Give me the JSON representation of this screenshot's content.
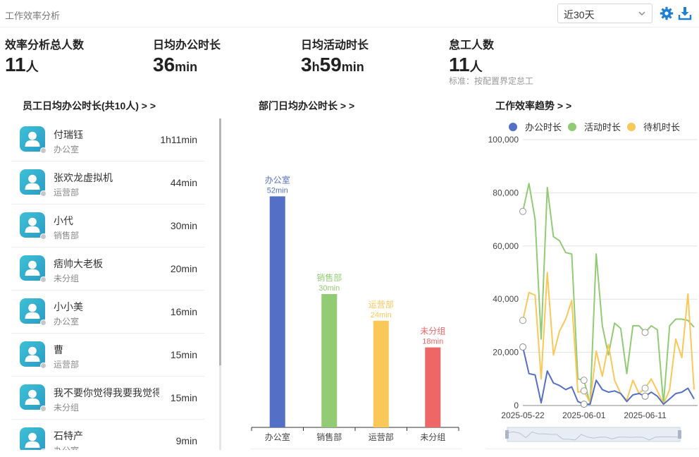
{
  "header": {
    "title": "工作效率分析",
    "range_selected": "近30天"
  },
  "stats": [
    {
      "label": "效率分析总人数",
      "value": "11",
      "unit": "人",
      "note": ""
    },
    {
      "label": "日均办公时长",
      "value": "36",
      "unit": "min",
      "note": ""
    },
    {
      "label": "日均活动时长",
      "value_h": "3",
      "unit_h": "h",
      "value": "59",
      "unit": "min",
      "note": ""
    },
    {
      "label": "怠工人数",
      "value": "11",
      "unit": "人",
      "note": "标准：按配置界定怠工"
    }
  ],
  "employees": {
    "title": "员工日均办公时长(共10人) > >",
    "items": [
      {
        "name": "付瑞钰",
        "dept": "办公室",
        "duration": "1h11min"
      },
      {
        "name": "张欢龙虚拟机",
        "dept": "运营部",
        "duration": "44min"
      },
      {
        "name": "小代",
        "dept": "销售部",
        "duration": "30min"
      },
      {
        "name": "痞帅大老板",
        "dept": "未分组",
        "duration": "20min"
      },
      {
        "name": "小小美",
        "dept": "办公室",
        "duration": "16min"
      },
      {
        "name": "曹",
        "dept": "运营部",
        "duration": "15min"
      },
      {
        "name": "我不要你觉得我要我觉得",
        "dept": "未分组",
        "duration": "15min"
      },
      {
        "name": "石特产",
        "dept": "办公室",
        "duration": "9min"
      }
    ]
  },
  "colors": {
    "accent": "#1f7fd0",
    "office": "#5470c6",
    "sales": "#91cc75",
    "ops": "#fac858",
    "ungrouped": "#ee6666"
  },
  "chart_data": [
    {
      "type": "bar",
      "title": "部门日均办公时长 > >",
      "categories": [
        "办公室",
        "销售部",
        "运营部",
        "未分组"
      ],
      "values": [
        52,
        30,
        24,
        18
      ],
      "data_labels": [
        "52min",
        "30min",
        "24min",
        "18min"
      ],
      "colors": [
        "#5470c6",
        "#91cc75",
        "#fac858",
        "#ee6666"
      ],
      "ylim": [
        0,
        60
      ]
    },
    {
      "type": "line",
      "title": "工作效率趋势 > >",
      "legend_position": "top",
      "x_ticks": [
        "2025-05-22",
        "2025-06-01",
        "2025-06-11"
      ],
      "y_ticks": [
        "0",
        "20,000",
        "40,000",
        "60,000",
        "80,000",
        "100,000"
      ],
      "ylim": [
        0,
        100000
      ],
      "grid": true,
      "series": [
        {
          "name": "办公时长",
          "color": "#5470c6",
          "values": [
            22000,
            12000,
            11500,
            1000,
            13000,
            8500,
            7500,
            6000,
            7000,
            1500,
            500,
            500,
            9500,
            6000,
            5000,
            5500,
            4500,
            1500,
            4000,
            4500,
            3500,
            5000,
            3500,
            500,
            2500,
            4500,
            5000,
            6500,
            2500
          ]
        },
        {
          "name": "活动时长",
          "color": "#91cc75",
          "values": [
            73000,
            83500,
            70000,
            25000,
            82000,
            63500,
            62000,
            57500,
            57000,
            10000,
            9500,
            500,
            57000,
            30000,
            19000,
            31000,
            29000,
            12000,
            30000,
            30000,
            27500,
            30000,
            28500,
            500,
            30000,
            32500,
            32500,
            32000,
            29500
          ]
        },
        {
          "name": "待机时长",
          "color": "#fac858",
          "values": [
            32000,
            42500,
            41500,
            10000,
            50000,
            19000,
            28000,
            32500,
            39500,
            5000,
            5500,
            1000,
            20500,
            11000,
            23000,
            9500,
            4500,
            2000,
            9500,
            4500,
            6500,
            10000,
            5500,
            500,
            6000,
            25000,
            18000,
            42000,
            6000
          ]
        }
      ]
    }
  ]
}
